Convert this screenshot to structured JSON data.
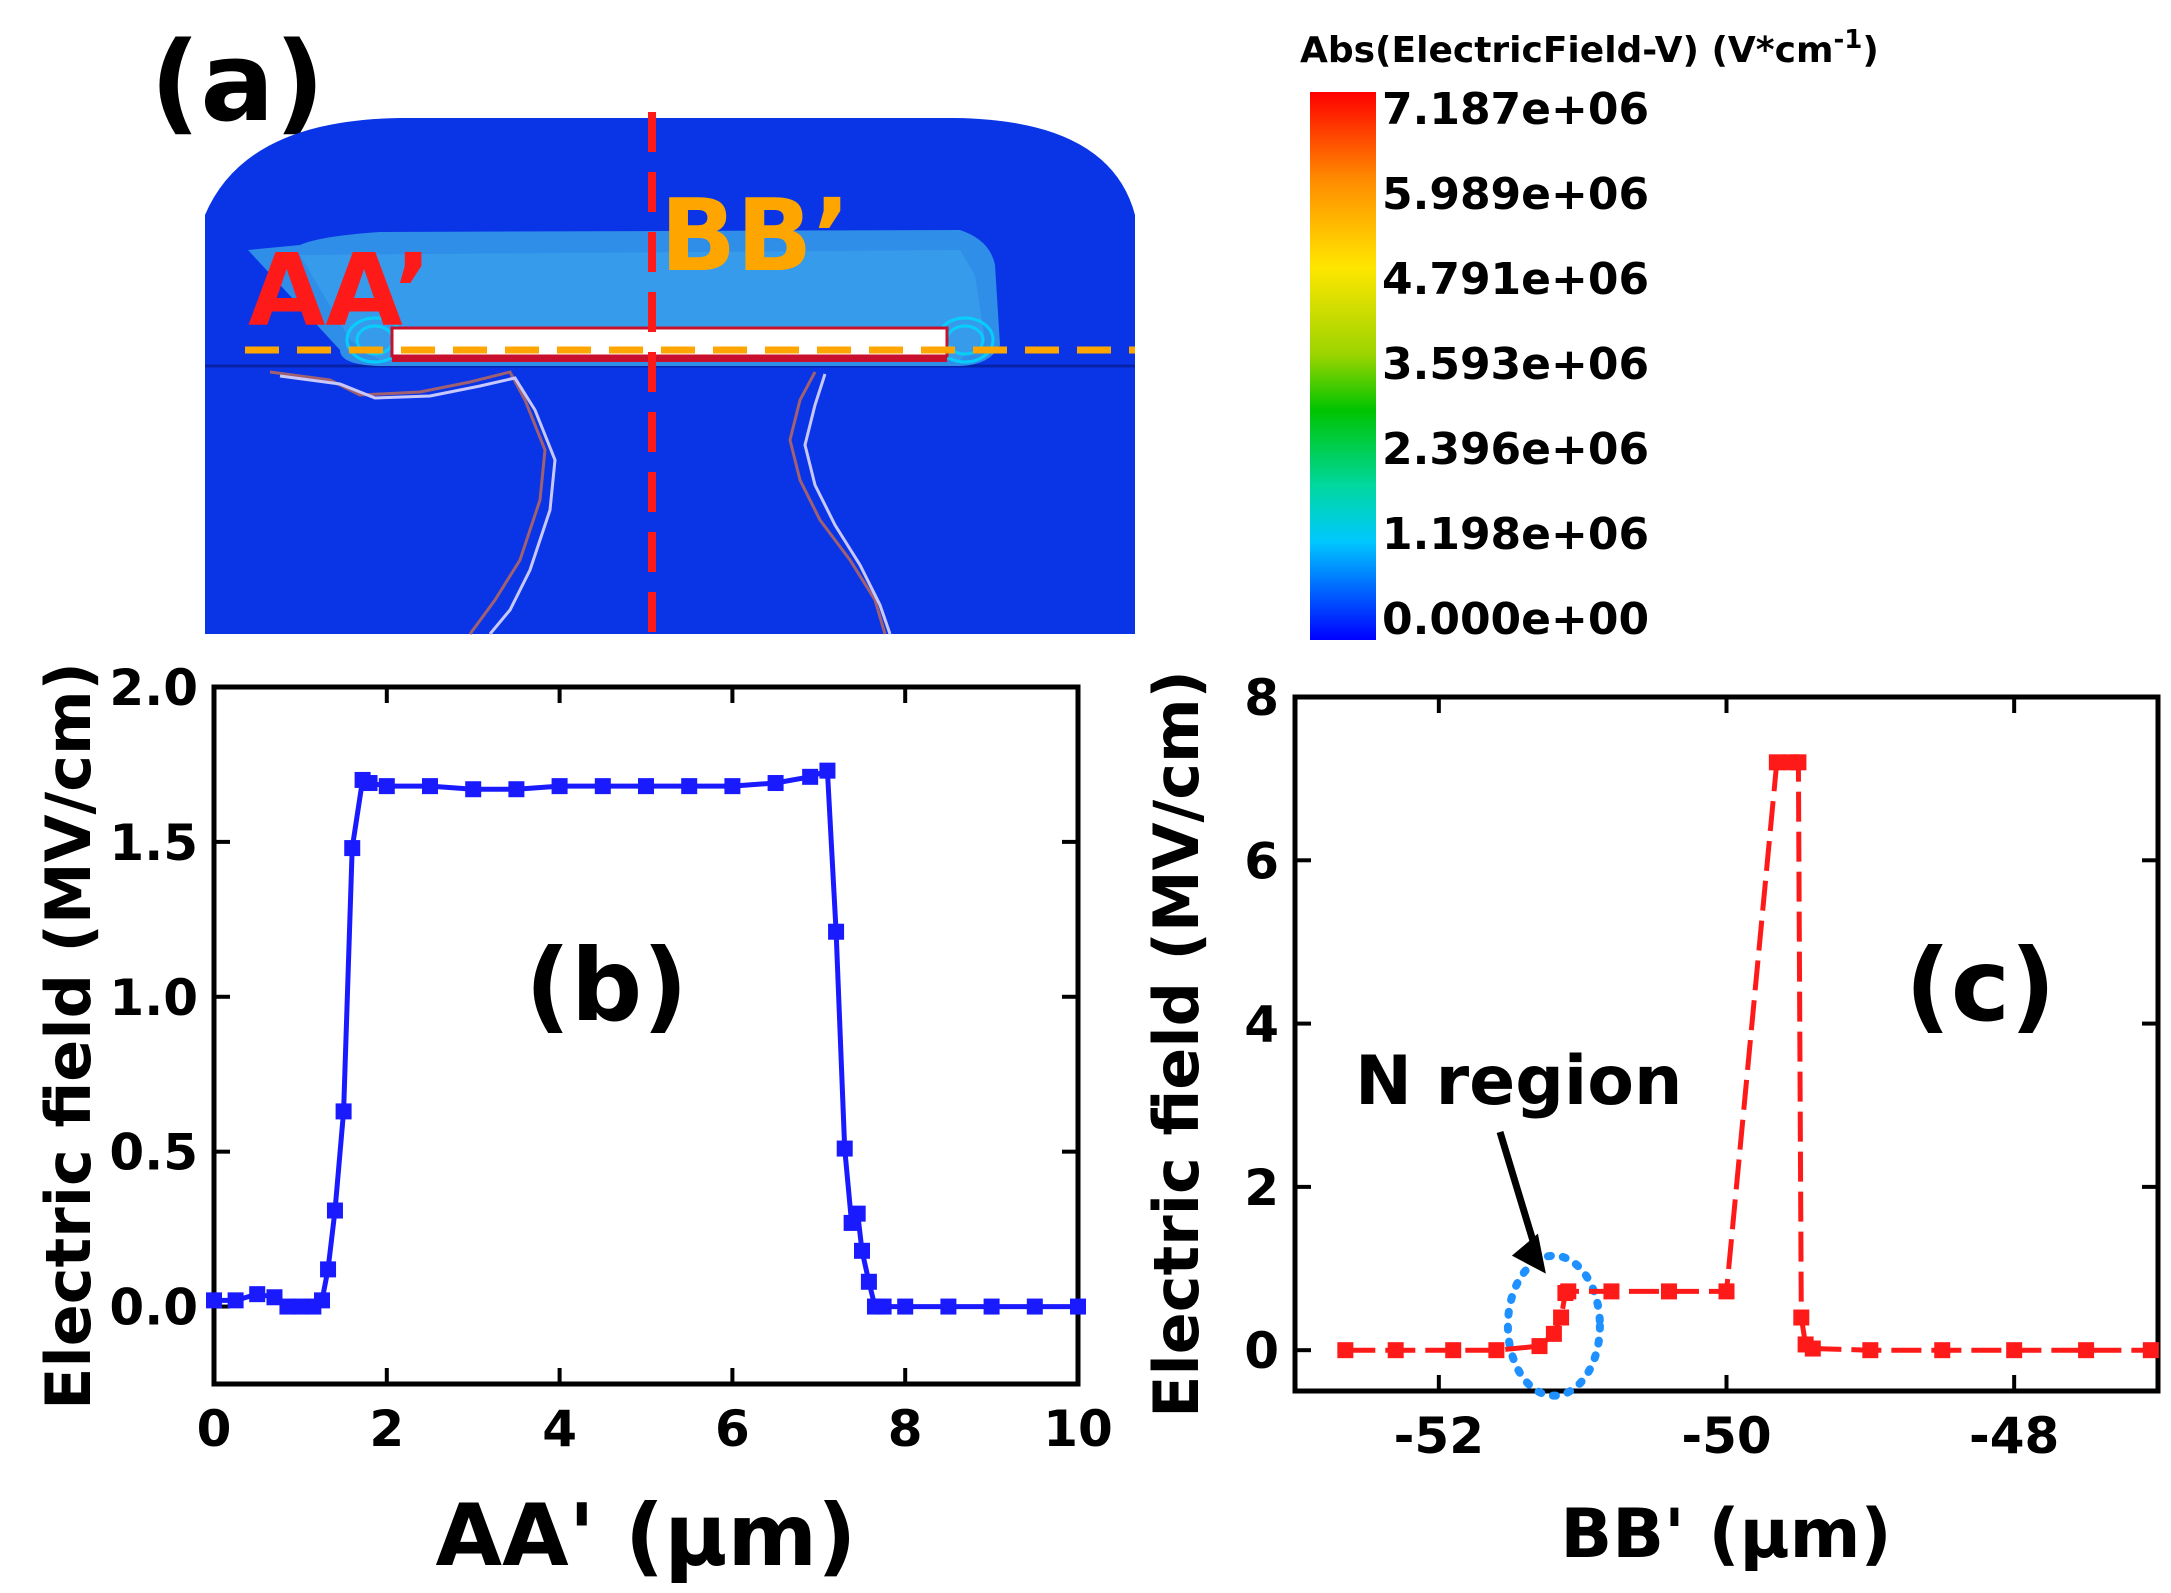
{
  "panel_a": {
    "label": "(a)",
    "line_aa_label": "AA’",
    "line_bb_label": "BB’",
    "colorbar": {
      "title": "Abs(ElectricField-V) (V*cm",
      "title_exponent": "-1",
      "title_close": ")",
      "ticks": [
        "7.187e+06",
        "5.989e+06",
        "4.791e+06",
        "3.593e+06",
        "2.396e+06",
        "1.198e+06",
        "0.000e+00"
      ]
    },
    "colors": {
      "background_field": "#0a35e6",
      "inner_region": "#2f8fe8",
      "line_aa": "#ffa500",
      "line_bb": "#ff1a1a",
      "aa_text": "#ff1a1a",
      "bb_text": "#ffa500"
    }
  },
  "chart_data": [
    {
      "type": "line",
      "panel": "(b)",
      "xlabel": "AA' (μm)",
      "ylabel": "Electric field (MV/cm)",
      "xlim": [
        0,
        10
      ],
      "ylim": [
        -0.25,
        2.0
      ],
      "xticks": [
        "0",
        "2",
        "4",
        "6",
        "8",
        "10"
      ],
      "yticks": [
        "0.0",
        "0.5",
        "1.0",
        "1.5",
        "2.0"
      ],
      "color": "#1a1aff",
      "x": [
        0,
        0.25,
        0.5,
        0.7,
        0.85,
        1.0,
        1.15,
        1.25,
        1.32,
        1.4,
        1.5,
        1.6,
        1.72,
        1.8,
        2.0,
        2.5,
        3.0,
        3.5,
        4.0,
        4.5,
        5.0,
        5.5,
        6.0,
        6.5,
        6.9,
        7.1,
        7.2,
        7.3,
        7.38,
        7.45,
        7.5,
        7.58,
        7.65,
        7.75,
        8.0,
        8.5,
        9.0,
        9.5,
        10.0
      ],
      "y": [
        0.02,
        0.02,
        0.04,
        0.03,
        0.0,
        0.0,
        0.0,
        0.02,
        0.12,
        0.31,
        0.63,
        1.48,
        1.7,
        1.69,
        1.68,
        1.68,
        1.67,
        1.67,
        1.68,
        1.68,
        1.68,
        1.68,
        1.68,
        1.69,
        1.71,
        1.73,
        1.21,
        0.51,
        0.27,
        0.3,
        0.18,
        0.08,
        0.0,
        0.0,
        0.0,
        0.0,
        0.0,
        0.0,
        0.0
      ]
    },
    {
      "type": "line",
      "panel": "(c)",
      "xlabel": "BB' (μm)",
      "ylabel": "Electric field (MV/cm)",
      "xlim": [
        -53.0,
        -47.0
      ],
      "ylim": [
        -0.5,
        8.0
      ],
      "xticks": [
        "-52",
        "-50",
        "-48"
      ],
      "yticks": [
        "0",
        "2",
        "4",
        "6",
        "8"
      ],
      "color": "#ff1a1a",
      "x": [
        -52.65,
        -52.3,
        -51.9,
        -51.6,
        -51.3,
        -51.2,
        -51.15,
        -51.12,
        -51.1,
        -50.8,
        -50.4,
        -50.0,
        -49.65,
        -49.55,
        -49.5,
        -49.48,
        -49.45,
        -49.4,
        -49.0,
        -48.5,
        -48.0,
        -47.5,
        -47.05
      ],
      "y": [
        0.0,
        0.0,
        0.0,
        0.0,
        0.05,
        0.2,
        0.4,
        0.7,
        0.72,
        0.72,
        0.72,
        0.72,
        7.2,
        7.2,
        7.2,
        0.4,
        0.07,
        0.02,
        0.0,
        0.0,
        0.0,
        0.0,
        0.0
      ],
      "annotation": {
        "text": "N region",
        "x": -51.2,
        "y": 0.3,
        "ellipse_color": "#1e90ff"
      }
    }
  ]
}
